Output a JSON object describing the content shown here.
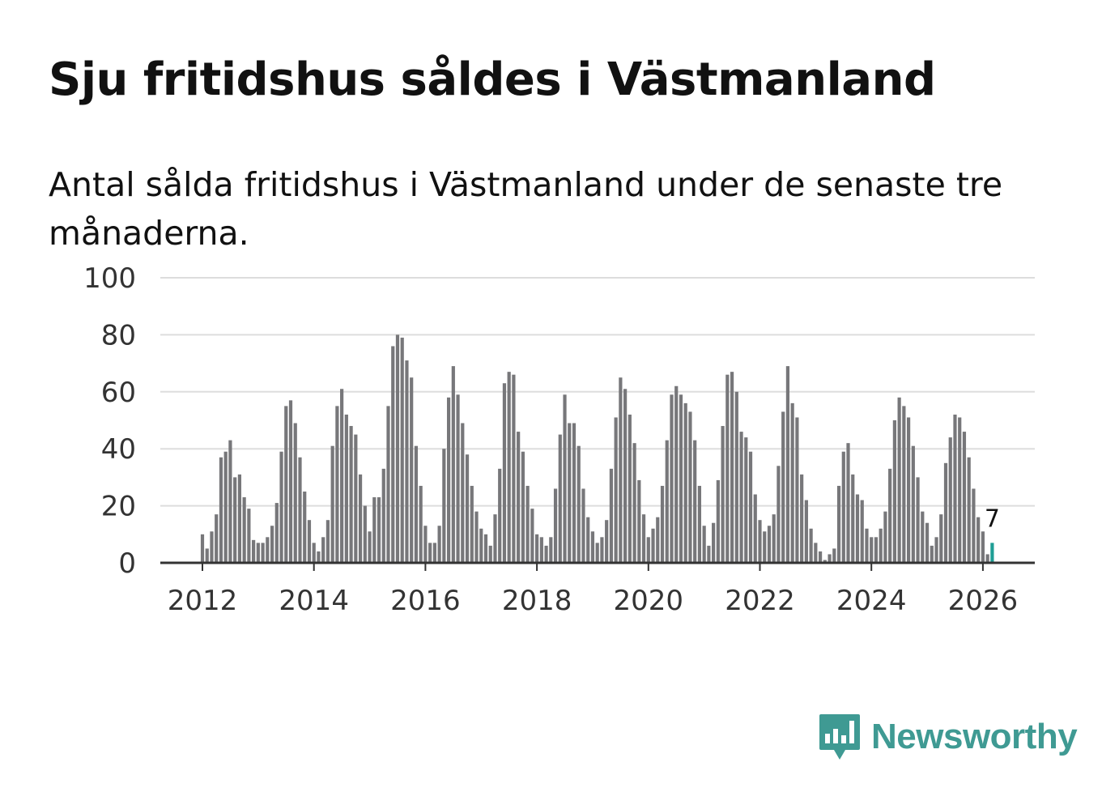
{
  "title": "Sju fritidshus såldes i Västmanland",
  "subtitle": "Antal sålda fritidshus i Västmanland under de senaste tre månaderna.",
  "brand": {
    "name": "Newsworthy",
    "color": "#3f9a93",
    "icon": "bar-chart-speech-bubble-icon"
  },
  "colors": {
    "bar": "#77777a",
    "highlight": "#1f9e95",
    "grid": "#dddddd",
    "baseline": "#333333"
  },
  "chart_data": {
    "type": "bar",
    "title": "Sju fritidshus såldes i Västmanland",
    "subtitle": "Antal sålda fritidshus i Västmanland under de senaste tre månaderna.",
    "x_start": "2012-01",
    "frequency": "monthly",
    "ylim": [
      0,
      100
    ],
    "yticks": [
      0,
      20,
      40,
      60,
      80,
      100
    ],
    "xticks": [
      "2012",
      "2014",
      "2016",
      "2018",
      "2020",
      "2022",
      "2024",
      "2026"
    ],
    "grid": "horizontal",
    "highlight_last": true,
    "last_label": "7",
    "values": [
      10,
      5,
      11,
      17,
      37,
      39,
      43,
      30,
      31,
      23,
      19,
      8,
      7,
      7,
      9,
      13,
      21,
      39,
      55,
      57,
      49,
      37,
      25,
      15,
      7,
      4,
      9,
      15,
      41,
      55,
      61,
      52,
      48,
      45,
      31,
      20,
      11,
      23,
      23,
      33,
      55,
      76,
      80,
      79,
      71,
      65,
      41,
      27,
      13,
      7,
      7,
      13,
      40,
      58,
      69,
      59,
      49,
      38,
      27,
      18,
      12,
      10,
      6,
      17,
      33,
      63,
      67,
      66,
      46,
      39,
      27,
      19,
      10,
      9,
      6,
      9,
      26,
      45,
      59,
      49,
      49,
      41,
      26,
      16,
      11,
      7,
      9,
      15,
      33,
      51,
      65,
      61,
      52,
      42,
      29,
      17,
      9,
      12,
      16,
      27,
      43,
      59,
      62,
      59,
      56,
      53,
      43,
      27,
      13,
      6,
      14,
      29,
      48,
      66,
      67,
      60,
      46,
      44,
      39,
      24,
      15,
      11,
      13,
      17,
      34,
      53,
      69,
      56,
      51,
      31,
      22,
      12,
      7,
      4,
      1,
      3,
      5,
      27,
      39,
      42,
      31,
      24,
      22,
      12,
      9,
      9,
      12,
      18,
      33,
      50,
      58,
      55,
      51,
      41,
      30,
      18,
      14,
      6,
      9,
      17,
      35,
      44,
      52,
      51,
      46,
      37,
      26,
      16,
      11,
      3,
      7
    ]
  }
}
